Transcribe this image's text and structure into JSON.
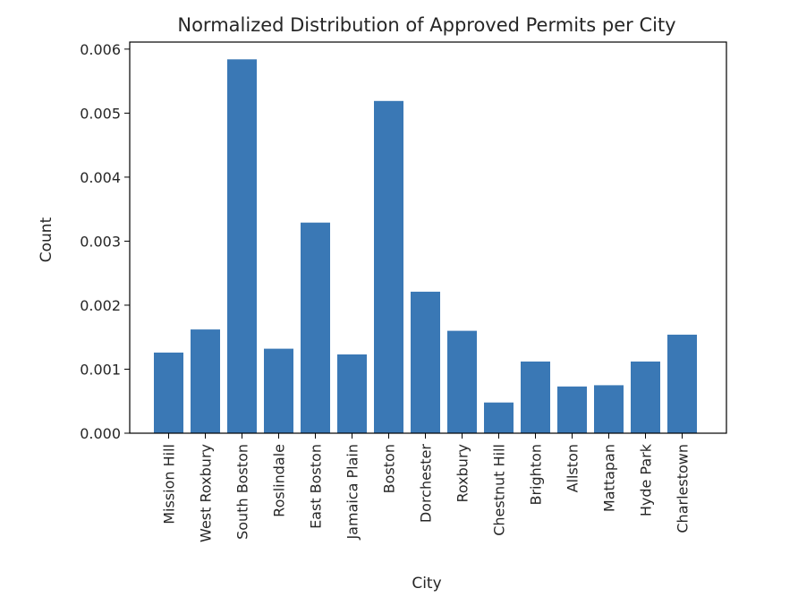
{
  "chart_data": {
    "type": "bar",
    "title": "Normalized Distribution of Approved Permits per City",
    "xlabel": "City",
    "ylabel": "Count",
    "categories": [
      "Mission Hill",
      "West Roxbury",
      "South Boston",
      "Roslindale",
      "East Boston",
      "Jamaica Plain",
      "Boston",
      "Dorchester",
      "Roxbury",
      "Chestnut Hill",
      "Brighton",
      "Allston",
      "Mattapan",
      "Hyde Park",
      "Charlestown"
    ],
    "values": [
      0.00126,
      0.00162,
      0.00584,
      0.00132,
      0.00329,
      0.00123,
      0.00519,
      0.00221,
      0.0016,
      0.00048,
      0.00112,
      0.00073,
      0.00075,
      0.00112,
      0.00154
    ],
    "yticks": [
      "0.000",
      "0.001",
      "0.002",
      "0.003",
      "0.004",
      "0.005",
      "0.006"
    ],
    "ylim": [
      0,
      0.00611
    ],
    "grid": false,
    "colors": {
      "bar": "#3a78b5",
      "axis": "#000000",
      "text": "#262626"
    }
  }
}
